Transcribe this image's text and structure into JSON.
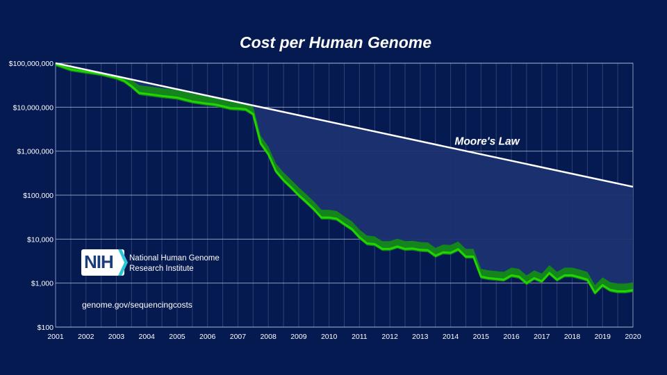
{
  "chart_data": {
    "type": "line",
    "title": "Cost per Human Genome",
    "xlabel": "",
    "ylabel": "",
    "y_scale": "log",
    "ylim": [
      100,
      100000000
    ],
    "xlim": [
      2001.0,
      2020.0
    ],
    "y_tick_labels": [
      "$100,000,000",
      "$10,000,000",
      "$1,000,000",
      "$100,000",
      "$10,000",
      "$1,000",
      "$100"
    ],
    "y_tick_values": [
      100000000,
      10000000,
      1000000,
      100000,
      10000,
      1000,
      100
    ],
    "x_tick_labels": [
      "2001",
      "2002",
      "2003",
      "2004",
      "2005",
      "2006",
      "2007",
      "2008",
      "2009",
      "2010",
      "2011",
      "2012",
      "2013",
      "2014",
      "2015",
      "2016",
      "2017",
      "2018",
      "2019",
      "2020"
    ],
    "grid": "horizontal lines at each decade, vertical lines at quarter intervals",
    "annotations": [
      {
        "text": "Moore's Law",
        "x": 2015.2,
        "y": 1400000
      }
    ],
    "colors": {
      "background": "#061a52",
      "moores_law_line": "#ffffff",
      "cost_line": "#22d400",
      "cost_band": "#138a17",
      "gap_fill": "#1c3270",
      "grid": "#c8cfe6"
    },
    "series": [
      {
        "name": "Moore's Law",
        "points": [
          [
            2001.0,
            100000000
          ],
          [
            2020.0,
            155000
          ]
        ]
      },
      {
        "name": "",
        "points": [
          [
            2001.0,
            95000000
          ],
          [
            2001.5,
            72000000
          ],
          [
            2002.0,
            64000000
          ],
          [
            2002.5,
            57000000
          ],
          [
            2003.0,
            47000000
          ],
          [
            2003.25,
            40000000
          ],
          [
            2003.5,
            30000000
          ],
          [
            2003.75,
            21000000
          ],
          [
            2004.0,
            20000000
          ],
          [
            2004.5,
            18000000
          ],
          [
            2005.0,
            16500000
          ],
          [
            2005.5,
            13500000
          ],
          [
            2006.0,
            12000000
          ],
          [
            2006.25,
            11500000
          ],
          [
            2006.5,
            10500000
          ],
          [
            2006.75,
            9500000
          ],
          [
            2007.0,
            9300000
          ],
          [
            2007.25,
            9000000
          ],
          [
            2007.5,
            7000000
          ],
          [
            2007.75,
            1500000
          ],
          [
            2008.0,
            850000
          ],
          [
            2008.25,
            350000
          ],
          [
            2008.5,
            220000
          ],
          [
            2008.75,
            150000
          ],
          [
            2009.0,
            100000
          ],
          [
            2009.25,
            70000
          ],
          [
            2009.5,
            48000
          ],
          [
            2009.75,
            31000
          ],
          [
            2010.0,
            31000
          ],
          [
            2010.25,
            29000
          ],
          [
            2010.5,
            22000
          ],
          [
            2010.75,
            17000
          ],
          [
            2011.0,
            11000
          ],
          [
            2011.25,
            8000
          ],
          [
            2011.5,
            7700
          ],
          [
            2011.75,
            6000
          ],
          [
            2012.0,
            6000
          ],
          [
            2012.25,
            6800
          ],
          [
            2012.5,
            6000
          ],
          [
            2012.75,
            6100
          ],
          [
            2013.0,
            5700
          ],
          [
            2013.25,
            5600
          ],
          [
            2013.5,
            4200
          ],
          [
            2013.75,
            5000
          ],
          [
            2014.0,
            4900
          ],
          [
            2014.25,
            5900
          ],
          [
            2014.5,
            4000
          ],
          [
            2014.75,
            4000
          ],
          [
            2015.0,
            1400
          ],
          [
            2015.25,
            1300
          ],
          [
            2015.5,
            1250
          ],
          [
            2015.75,
            1200
          ],
          [
            2016.0,
            1500
          ],
          [
            2016.25,
            1400
          ],
          [
            2016.5,
            1000
          ],
          [
            2016.75,
            1300
          ],
          [
            2017.0,
            1100
          ],
          [
            2017.25,
            1700
          ],
          [
            2017.5,
            1200
          ],
          [
            2017.75,
            1500
          ],
          [
            2018.0,
            1500
          ],
          [
            2018.25,
            1350
          ],
          [
            2018.5,
            1200
          ],
          [
            2018.75,
            600
          ],
          [
            2019.0,
            900
          ],
          [
            2019.25,
            700
          ],
          [
            2019.5,
            650
          ],
          [
            2019.75,
            650
          ],
          [
            2020.0,
            690
          ]
        ]
      }
    ]
  },
  "branding": {
    "logo_text": "NIH",
    "org_line1": "National Human Genome",
    "org_line2": "Research Institute",
    "url": "genome.gov/sequencingcosts"
  }
}
